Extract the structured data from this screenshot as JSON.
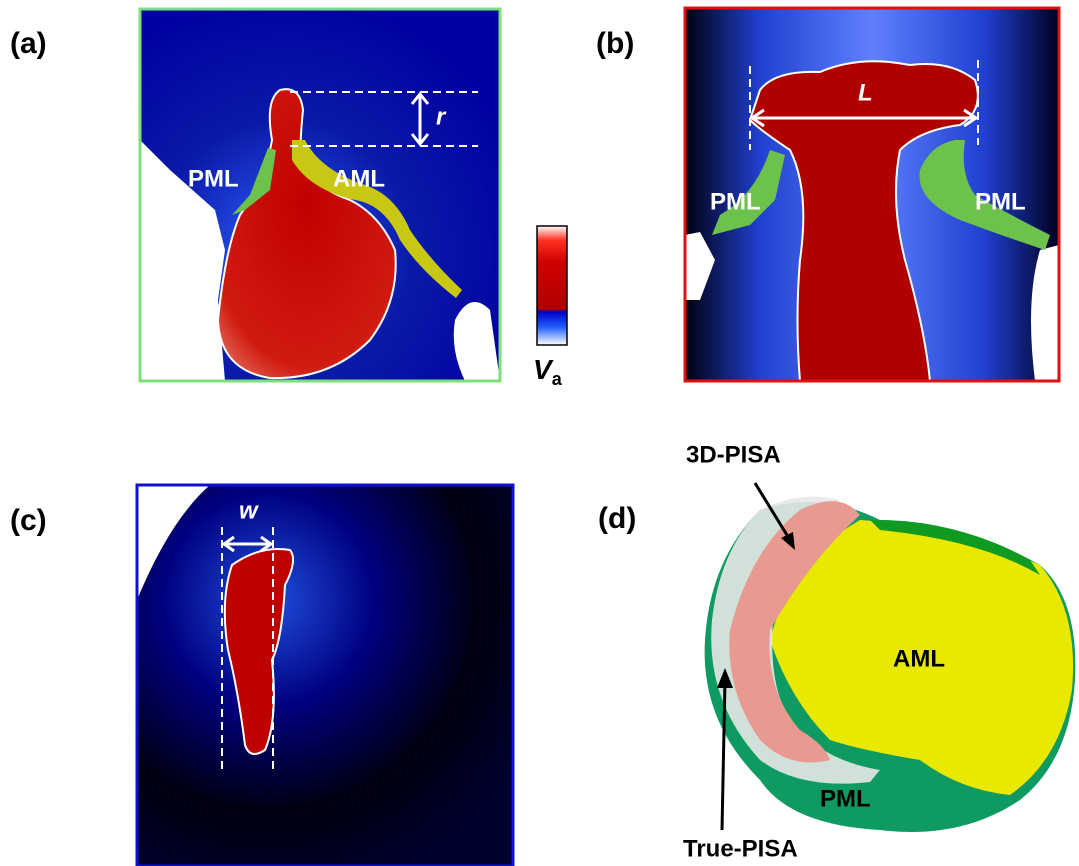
{
  "panels": [
    {
      "label": "(a)",
      "texts": [
        "PML",
        "AML",
        "r"
      ]
    },
    {
      "label": "(b)",
      "texts": [
        "L",
        "PML",
        "PML"
      ]
    },
    {
      "label": "(c)",
      "texts": [
        "w"
      ]
    },
    {
      "label": "(d)",
      "texts": [
        "3D-PISA",
        "AML",
        "PML",
        "True-PISA"
      ]
    }
  ],
  "colorbar": {
    "label": "V",
    "subscript": "a"
  }
}
